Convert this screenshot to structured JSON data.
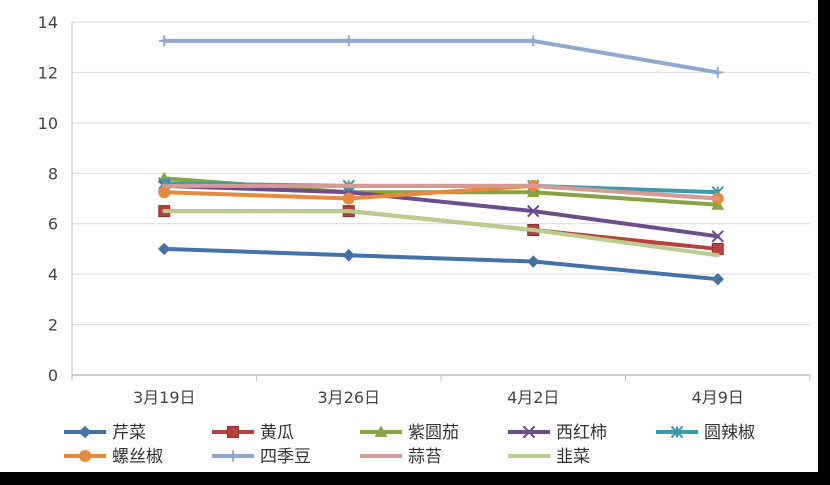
{
  "chart_data": {
    "type": "line",
    "categories": [
      "3月19日",
      "3月26日",
      "4月2日",
      "4月9日"
    ],
    "ylim": [
      0,
      14
    ],
    "yticks": [
      "0",
      "2",
      "4",
      "6",
      "8",
      "10",
      "12",
      "14"
    ],
    "grid": true,
    "legend": "bottom",
    "series": [
      {
        "name": "芹菜",
        "color": "#4472a8",
        "marker": "diamond",
        "values": [
          5.0,
          4.75,
          4.5,
          3.8
        ]
      },
      {
        "name": "黄瓜",
        "color": "#b5423e",
        "marker": "square",
        "values": [
          6.5,
          6.5,
          5.75,
          5.0
        ]
      },
      {
        "name": "紫圆茄",
        "color": "#86a442",
        "marker": "triangle",
        "values": [
          7.8,
          7.25,
          7.25,
          6.75
        ]
      },
      {
        "name": "西红柿",
        "color": "#6e4c8c",
        "marker": "x",
        "values": [
          7.5,
          7.25,
          6.5,
          5.5
        ]
      },
      {
        "name": "圆辣椒",
        "color": "#3b9aab",
        "marker": "asterisk",
        "values": [
          7.6,
          7.5,
          7.5,
          7.25
        ]
      },
      {
        "name": "螺丝椒",
        "color": "#e88a3c",
        "marker": "circle",
        "values": [
          7.25,
          7.0,
          7.5,
          7.0
        ]
      },
      {
        "name": "四季豆",
        "color": "#8fa9d3",
        "marker": "plus",
        "values": [
          13.25,
          13.25,
          13.25,
          12.0
        ]
      },
      {
        "name": "蒜苔",
        "color": "#d69a95",
        "marker": "none",
        "values": [
          7.5,
          7.5,
          7.5,
          7.0
        ]
      },
      {
        "name": "韭菜",
        "color": "#b8cd8e",
        "marker": "none",
        "values": [
          6.5,
          6.5,
          5.75,
          4.75
        ]
      }
    ]
  }
}
